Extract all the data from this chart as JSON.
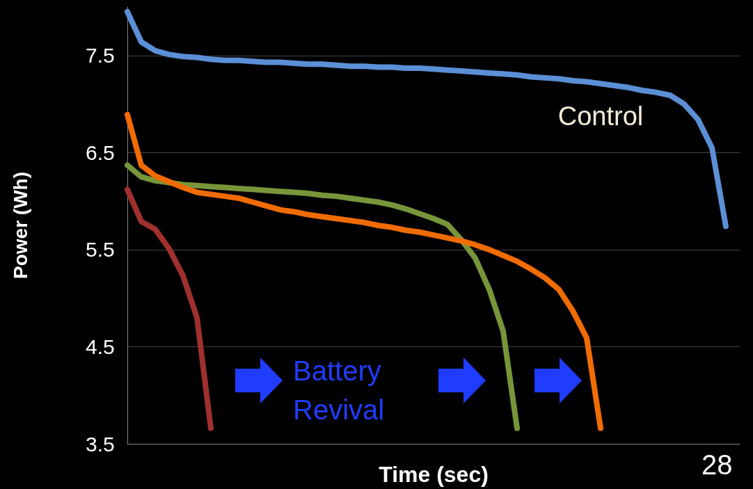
{
  "chart_data": {
    "type": "line",
    "ylabel": "Power (Wh)",
    "xlabel": "Time (sec)",
    "categories": [
      null,
      null,
      null,
      null,
      null,
      null,
      null,
      null,
      null,
      null,
      null,
      null,
      null,
      null,
      null,
      null,
      null,
      null,
      null,
      null,
      null,
      null,
      null,
      null,
      null,
      null,
      null,
      null,
      null,
      null,
      null,
      null,
      null,
      null,
      null,
      null,
      null,
      null,
      null,
      null,
      null,
      null,
      null,
      null,
      null
    ],
    "series": [
      {
        "name": "Control",
        "color": "#5b8fd6",
        "values": [
          7.95,
          7.64,
          7.55,
          7.51,
          7.49,
          7.48,
          7.46,
          7.45,
          7.45,
          7.44,
          7.43,
          7.43,
          7.42,
          7.41,
          7.41,
          7.4,
          7.39,
          7.39,
          7.38,
          7.38,
          7.37,
          7.37,
          7.36,
          7.35,
          7.34,
          7.33,
          7.32,
          7.31,
          7.3,
          7.28,
          7.27,
          7.26,
          7.24,
          7.23,
          7.21,
          7.19,
          7.17,
          7.14,
          7.12,
          7.09,
          7.0,
          6.84,
          6.55,
          5.74,
          null
        ]
      },
      {
        "color": "#77963a",
        "values": [
          6.37,
          6.25,
          6.21,
          6.19,
          6.17,
          6.16,
          6.15,
          6.14,
          6.13,
          6.12,
          6.11,
          6.1,
          6.09,
          6.08,
          6.06,
          6.05,
          6.03,
          6.01,
          5.99,
          5.96,
          5.92,
          5.87,
          5.82,
          5.76,
          5.6,
          5.41,
          5.09,
          4.66,
          3.66,
          null,
          null,
          null,
          null,
          null,
          null,
          null,
          null,
          null,
          null,
          null,
          null,
          null,
          null,
          null,
          null
        ]
      },
      {
        "color": "#f06c00",
        "values": [
          6.89,
          6.37,
          6.26,
          6.2,
          6.14,
          6.09,
          6.07,
          6.05,
          6.03,
          5.99,
          5.95,
          5.91,
          5.89,
          5.86,
          5.84,
          5.82,
          5.8,
          5.78,
          5.75,
          5.73,
          5.7,
          5.68,
          5.65,
          5.62,
          5.59,
          5.55,
          5.5,
          5.44,
          5.38,
          5.3,
          5.21,
          5.09,
          4.87,
          4.59,
          3.66,
          null,
          null,
          null,
          null,
          null,
          null,
          null,
          null,
          null,
          null
        ]
      },
      {
        "color": "#a0302e",
        "values": [
          6.12,
          5.79,
          5.71,
          5.51,
          5.23,
          4.8,
          3.66,
          null,
          null,
          null,
          null,
          null,
          null,
          null,
          null,
          null,
          null,
          null,
          null,
          null,
          null,
          null,
          null,
          null,
          null,
          null,
          null,
          null,
          null,
          null,
          null,
          null,
          null,
          null,
          null,
          null,
          null,
          null,
          null,
          null,
          null,
          null,
          null,
          null,
          null
        ]
      }
    ],
    "ylim": [
      3.5,
      8.0
    ],
    "yticks": [
      3.5,
      4.5,
      5.5,
      6.5,
      7.5
    ],
    "grid": "y",
    "tick_labels": "y",
    "annotations": [
      "Battery Revival",
      "28"
    ]
  }
}
